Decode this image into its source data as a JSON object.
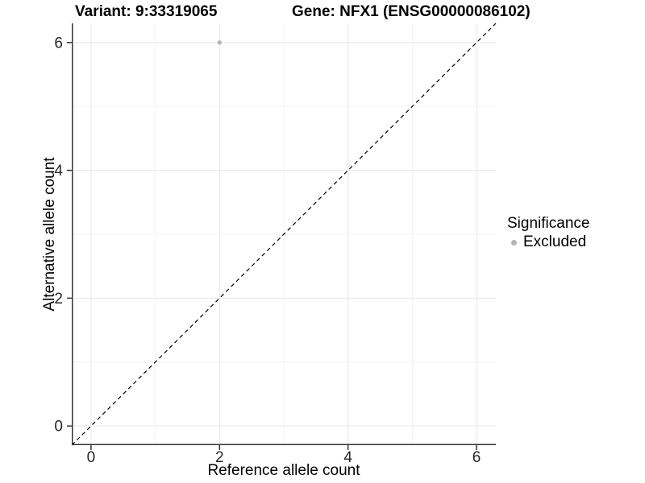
{
  "chart_data": {
    "type": "scatter",
    "titles": {
      "variant": "Variant: 9:33319065",
      "gene": "Gene: NFX1 (ENSG00000086102)"
    },
    "xlabel": "Reference allele count",
    "ylabel": "Alternative allele count",
    "xlim": [
      -0.3,
      6.3
    ],
    "ylim": [
      -0.3,
      6.3
    ],
    "xticks": [
      0,
      2,
      4,
      6
    ],
    "yticks": [
      0,
      2,
      4,
      6
    ],
    "minor_xticks": [
      1,
      3,
      5
    ],
    "minor_yticks": [
      1,
      3,
      5
    ],
    "grid": "major+minor",
    "series": [
      {
        "name": "Excluded",
        "marker": "circle",
        "color": "#b4b4b4",
        "points": [
          {
            "x": 2,
            "y": 6
          }
        ]
      }
    ],
    "reference_line": {
      "kind": "identity",
      "slope": 1,
      "intercept": 0,
      "style": "dashed",
      "color": "#000000"
    },
    "legend": {
      "title": "Significance",
      "position": "right",
      "entries": [
        {
          "label": "Excluded",
          "color": "#b4b4b4",
          "marker": "circle"
        }
      ]
    },
    "colors": {
      "background": "#ffffff",
      "grid_major": "#e7e7e7",
      "grid_minor": "#f3f3f3",
      "axis": "#333333",
      "tick_label": "#262626"
    }
  }
}
